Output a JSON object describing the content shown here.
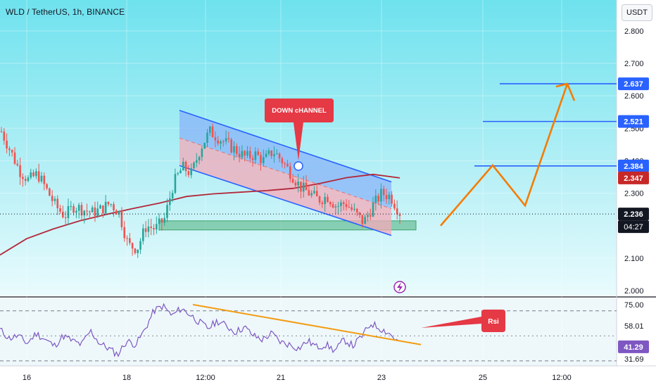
{
  "header": {
    "title": "WLD / TetherUS, 1h, BINANCE"
  },
  "unit_button": "USDT",
  "colors": {
    "background": "#ffffff",
    "up_candle": "#26a69a",
    "down_candle": "#ef5350",
    "moving_average": "#b2283a",
    "channel_line": "#2962ff",
    "channel_upper_fill": "#8ab4f8",
    "channel_lower_fill": "#f4a9b8",
    "support_zone": "#4caf7a",
    "projection_arrow": "#f57c00",
    "level_line": "#2962ff",
    "rsi_line": "#7e57c2",
    "rsi_trendline": "#f39c12",
    "callout": "#e53945"
  },
  "chart_data": [
    {
      "type": "candlestick",
      "symbol": "WLD / TetherUS",
      "timeframe": "1h",
      "exchange": "BINANCE",
      "x_tick_labels": [
        "16",
        "18",
        "12:00",
        "21",
        "23",
        "25",
        "12:00"
      ],
      "y_tick_labels": [
        "2.800",
        "2.700",
        "2.600",
        "2.500",
        "2.400",
        "2.300",
        "2.100",
        "2.000"
      ],
      "ylim": [
        1.985,
        2.895
      ],
      "price_labels": [
        {
          "label": "2.637",
          "value": 2.637,
          "color": "#2962ff"
        },
        {
          "label": "2.521",
          "value": 2.521,
          "color": "#2962ff"
        },
        {
          "label": "2.384",
          "value": 2.384,
          "color": "#2962ff"
        },
        {
          "label": "2.347",
          "value": 2.347,
          "color": "#c62828"
        },
        {
          "label": "2.236",
          "value": 2.236,
          "color": "#131722"
        }
      ],
      "countdown_label": "04:27",
      "current_price": 2.236,
      "horizontal_levels": [
        2.637,
        2.521,
        2.384
      ],
      "support_zone": [
        2.187,
        2.215
      ],
      "channel": {
        "upper_start": 2.555,
        "upper_end": 2.335,
        "lower_start": 2.385,
        "lower_end": 2.17
      },
      "moving_average": [
        2.11,
        2.16,
        2.19,
        2.215,
        2.235,
        2.253,
        2.27,
        2.29,
        2.298,
        2.303,
        2.308,
        2.315,
        2.33,
        2.348,
        2.358,
        2.347
      ],
      "annotations": [
        {
          "text": "DOWN cHANNEL",
          "type": "callout"
        }
      ],
      "projection_path": [
        2.2,
        2.386,
        2.262,
        2.637
      ],
      "candle_path": [
        2.49,
        2.43,
        2.37,
        2.34,
        2.36,
        2.31,
        2.26,
        2.23,
        2.26,
        2.25,
        2.24,
        2.25,
        2.27,
        2.24,
        2.14,
        2.13,
        2.2,
        2.19,
        2.22,
        2.33,
        2.38,
        2.36,
        2.44,
        2.49,
        2.47,
        2.45,
        2.43,
        2.41,
        2.42,
        2.4,
        2.43,
        2.4,
        2.36,
        2.32,
        2.3,
        2.28,
        2.29,
        2.26,
        2.27,
        2.24,
        2.21,
        2.26,
        2.3,
        2.29,
        2.24
      ]
    },
    {
      "type": "line",
      "name": "Rsi",
      "y_tick_labels": [
        "75.00",
        "58.01",
        "41.29",
        "31.69"
      ],
      "ylim": [
        26,
        80
      ],
      "value_labels": [
        {
          "label": "58.01",
          "value": 58.01
        },
        {
          "label": "41.29",
          "value": 41.29
        }
      ],
      "overbought": 70,
      "oversold": 30,
      "trendline": [
        75,
        43
      ],
      "rsi_path": [
        55,
        48,
        50,
        44,
        52,
        47,
        42,
        50,
        46,
        43,
        54,
        44,
        40,
        35,
        46,
        43,
        55,
        70,
        74,
        66,
        72,
        67,
        61,
        56,
        62,
        58,
        53,
        57,
        50,
        47,
        52,
        45,
        43,
        40,
        46,
        41,
        43,
        38,
        47,
        42,
        50,
        60,
        56,
        52,
        45
      ]
    }
  ]
}
